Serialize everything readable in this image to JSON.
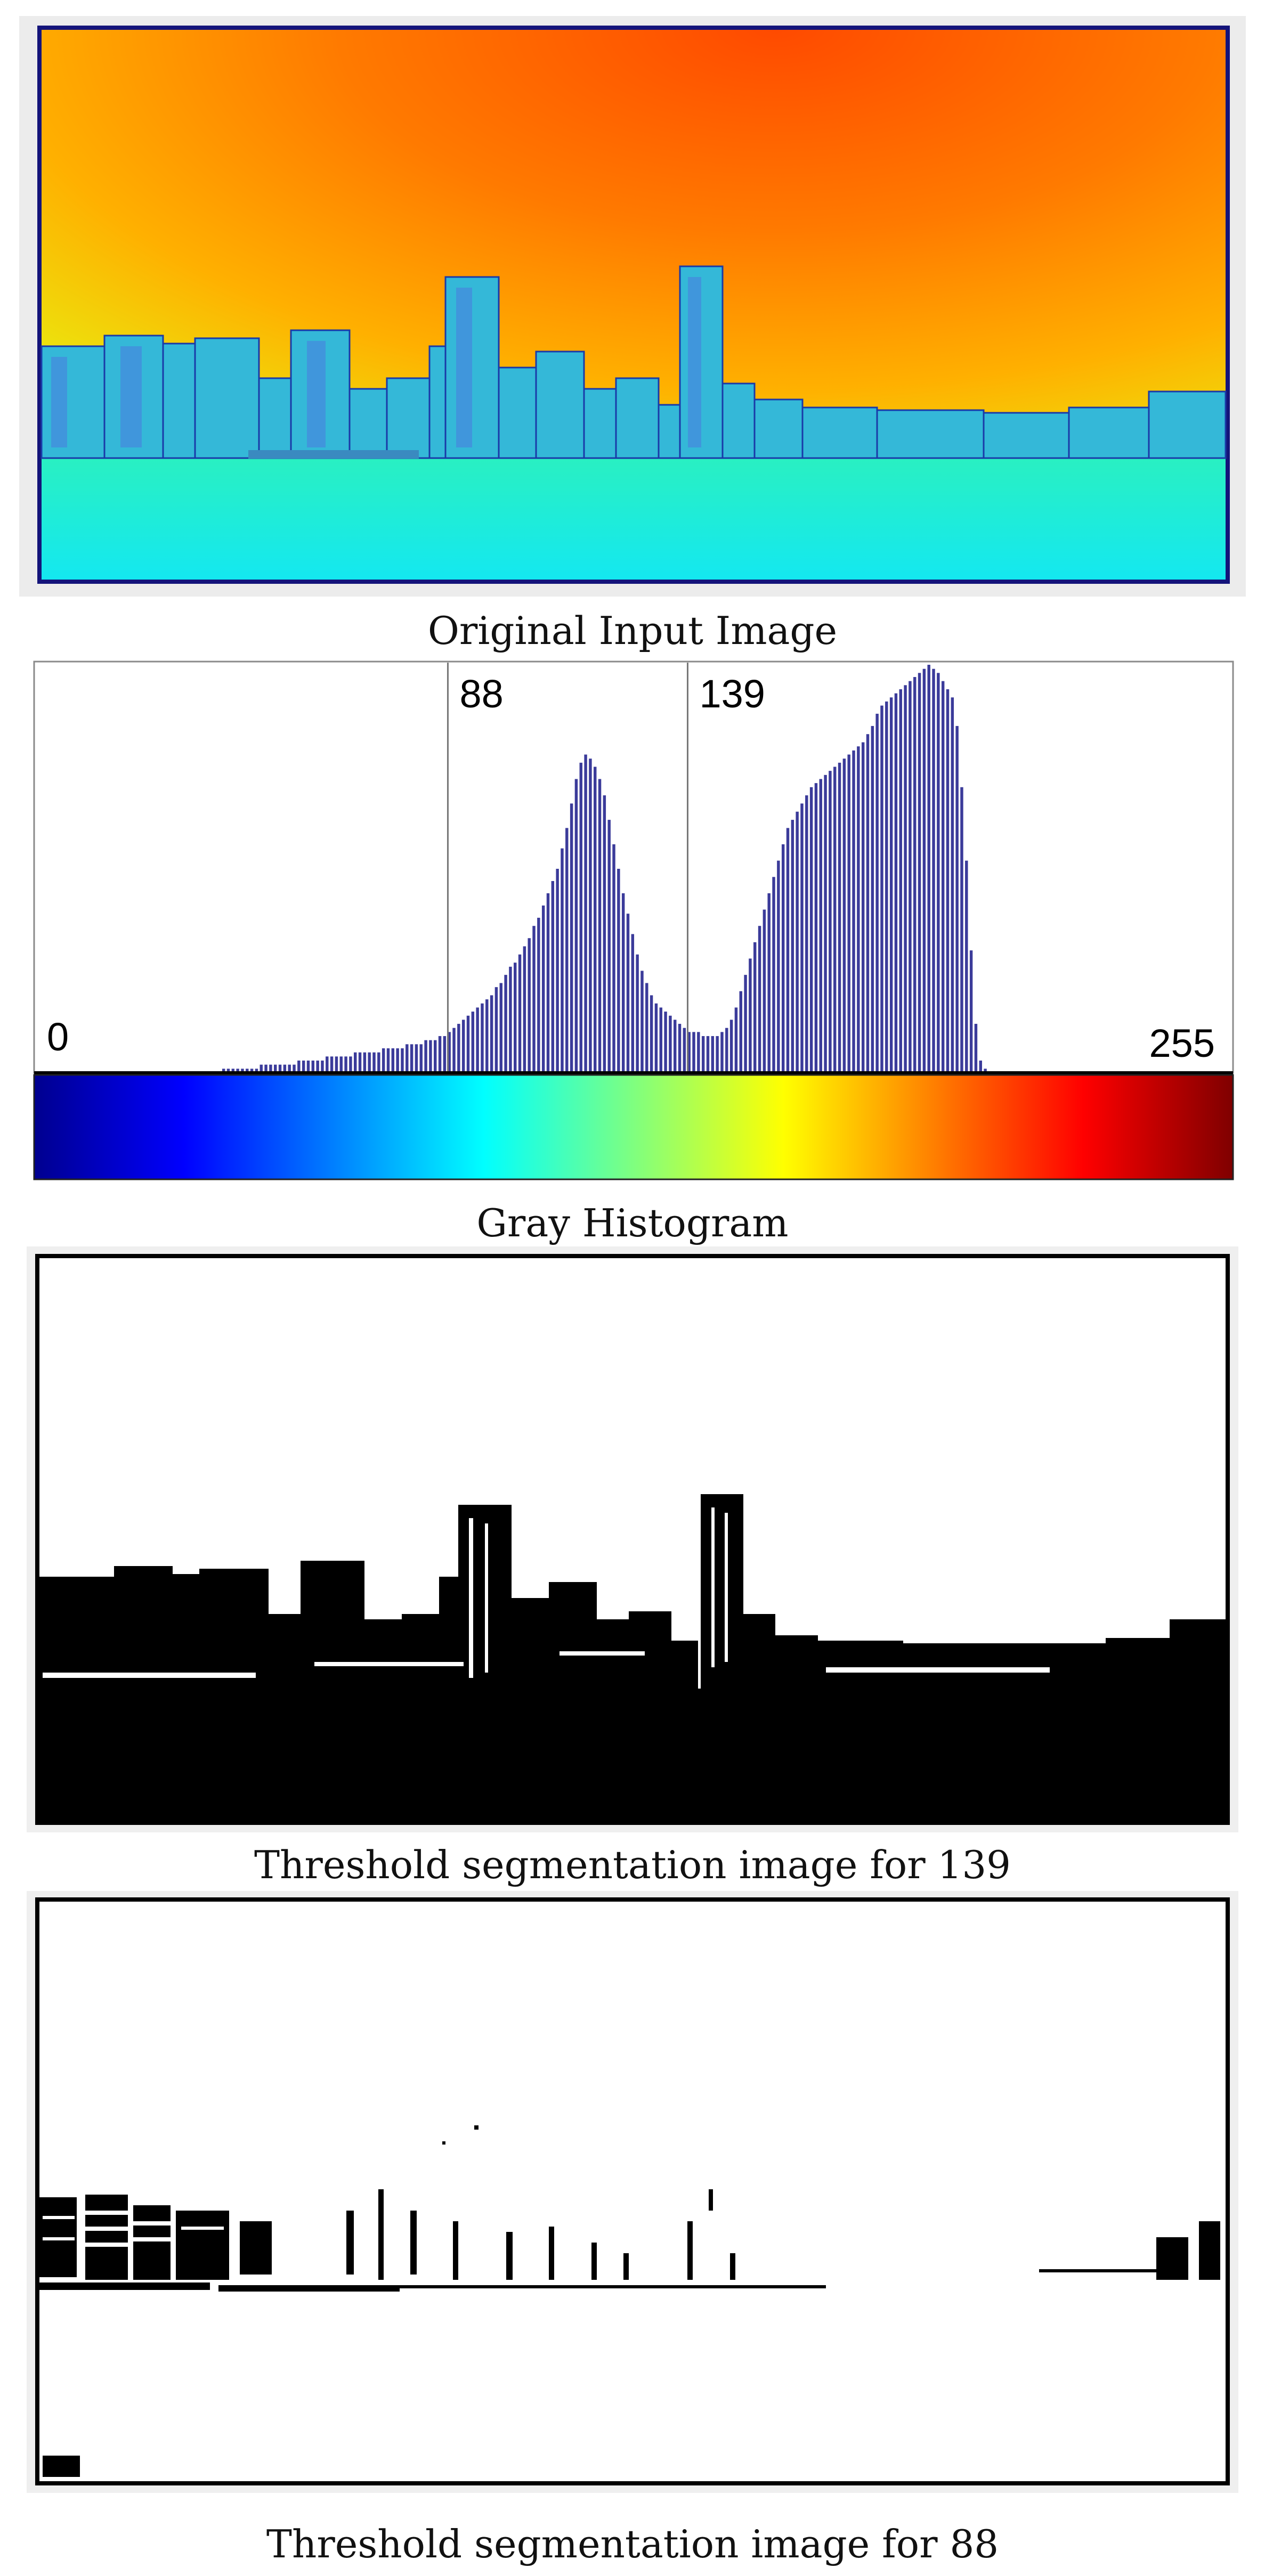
{
  "figure": {
    "panels": [
      {
        "id": "original",
        "caption": "Original Input Image"
      },
      {
        "id": "histogram",
        "caption": "Gray Histogram"
      },
      {
        "id": "seg139",
        "caption": "Threshold segmentation image for 139"
      },
      {
        "id": "seg88",
        "caption": "Threshold segmentation image for 88"
      }
    ]
  },
  "chart_data": {
    "type": "bar",
    "xlim": [
      0,
      255
    ],
    "axis_labels": {
      "min": "0",
      "max": "255"
    },
    "thresholds": [
      {
        "value": 88,
        "label": "88"
      },
      {
        "value": 139,
        "label": "139"
      }
    ],
    "bar_color": "#3b3b9a",
    "colorbar": "jet",
    "bins": {
      "start": 0,
      "step": 1,
      "values": [
        0,
        0,
        0,
        0,
        0,
        0,
        0,
        0,
        0,
        0,
        0,
        0,
        0,
        0,
        0,
        0,
        0,
        0,
        0,
        0,
        0,
        0,
        0,
        0,
        0,
        0,
        0,
        0,
        0,
        0,
        0,
        0,
        0,
        0,
        0,
        0,
        0,
        0,
        0,
        0,
        1,
        1,
        1,
        1,
        1,
        1,
        1,
        1,
        2,
        2,
        2,
        2,
        2,
        2,
        2,
        2,
        3,
        3,
        3,
        3,
        3,
        3,
        4,
        4,
        4,
        4,
        4,
        4,
        5,
        5,
        5,
        5,
        5,
        5,
        6,
        6,
        6,
        6,
        6,
        7,
        7,
        7,
        7,
        8,
        8,
        8,
        9,
        9,
        10,
        11,
        12,
        13,
        14,
        15,
        16,
        17,
        18,
        19,
        21,
        22,
        24,
        26,
        27,
        29,
        31,
        33,
        36,
        38,
        41,
        44,
        47,
        50,
        55,
        60,
        66,
        72,
        76,
        78,
        77,
        75,
        72,
        68,
        62,
        56,
        50,
        44,
        39,
        34,
        29,
        25,
        22,
        19,
        17,
        16,
        15,
        14,
        13,
        12,
        11,
        10,
        10,
        10,
        9,
        9,
        9,
        9,
        10,
        11,
        13,
        16,
        20,
        24,
        28,
        32,
        36,
        40,
        44,
        48,
        52,
        56,
        60,
        62,
        64,
        66,
        68,
        70,
        71,
        72,
        73,
        74,
        75,
        76,
        77,
        78,
        79,
        80,
        81,
        83,
        85,
        88,
        90,
        91,
        92,
        93,
        94,
        95,
        96,
        97,
        98,
        99,
        100,
        99,
        98,
        96,
        94,
        92,
        85,
        70,
        52,
        30,
        12,
        3,
        1,
        0,
        0,
        0,
        0,
        0,
        0,
        0,
        0,
        0,
        0,
        0,
        0,
        0,
        0,
        0,
        0,
        0,
        0,
        0,
        0,
        0,
        0,
        0,
        0,
        0,
        0,
        0,
        0,
        0,
        0,
        0,
        0,
        0,
        0,
        0,
        0,
        0,
        0,
        0,
        0,
        0,
        0,
        0,
        0,
        0,
        0,
        0,
        0,
        0,
        0,
        0,
        0,
        0,
        0,
        0,
        0,
        0,
        0,
        0,
        0,
        0,
        0,
        0,
        0,
        0,
        0
      ]
    }
  },
  "colors": {
    "frame_blue": "#14147a",
    "panel_bg": "#efefef"
  }
}
